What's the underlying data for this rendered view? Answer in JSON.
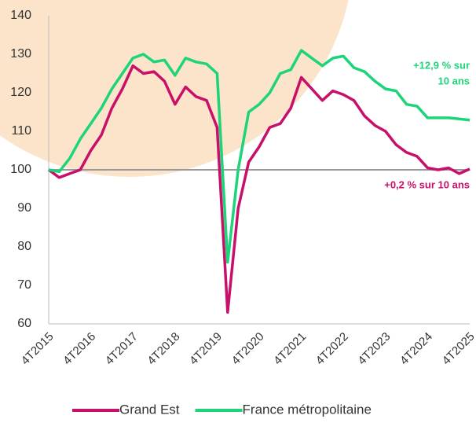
{
  "chart_data": {
    "type": "line",
    "categories": [
      "4T2015",
      null,
      null,
      null,
      "4T2016",
      null,
      null,
      null,
      "4T2017",
      null,
      null,
      null,
      "4T2018",
      null,
      null,
      null,
      "4T2019",
      null,
      null,
      null,
      "4T2020",
      null,
      null,
      null,
      "4T2021",
      null,
      null,
      null,
      "4T2022",
      null,
      null,
      null,
      "4T2023",
      null,
      null,
      null,
      "4T2024",
      null,
      null,
      null,
      "4T2025"
    ],
    "series": [
      {
        "name": "Grand Est",
        "color": "#c8106b",
        "values": [
          100,
          98,
          99,
          100,
          105,
          109,
          116,
          121,
          127,
          125,
          125.5,
          123,
          117,
          121.5,
          119,
          118,
          111,
          63,
          90,
          102,
          106,
          111,
          112,
          116,
          124,
          121,
          118,
          120.5,
          119.5,
          118,
          114,
          111.5,
          110,
          106.5,
          104.5,
          103.5,
          100.5,
          100,
          100.5,
          99,
          100.2
        ]
      },
      {
        "name": "France métropolitaine",
        "color": "#1ed47a",
        "values": [
          100,
          99.5,
          103,
          108,
          112,
          116,
          121,
          125,
          129,
          130,
          128,
          128.5,
          124.5,
          129,
          128,
          127.5,
          125,
          76,
          100,
          115,
          117,
          120,
          125,
          126,
          131,
          129,
          127,
          129,
          129.5,
          126.5,
          125.5,
          123,
          121,
          120.5,
          117,
          116.5,
          113.5,
          113.5,
          113.5,
          113.2,
          112.9
        ]
      }
    ],
    "ylim": [
      60,
      140
    ],
    "yticks": [
      60,
      70,
      80,
      90,
      100,
      110,
      120,
      130,
      140
    ],
    "reference_line": 100,
    "annotations": [
      {
        "lines": [
          "+12,9 % sur",
          "10 ans"
        ],
        "color": "#1ed47a"
      },
      {
        "lines": [
          "+0,2 % sur 10 ans"
        ],
        "color": "#c8106b"
      }
    ],
    "legend": "bottom"
  }
}
